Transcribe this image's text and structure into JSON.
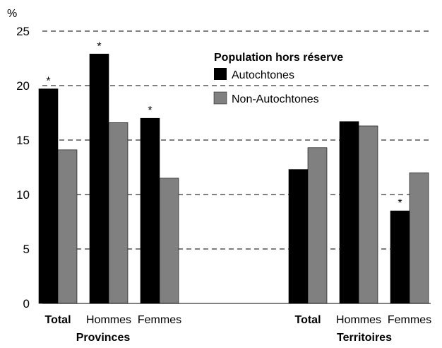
{
  "chart_data": {
    "type": "bar",
    "ylabel": "%",
    "ylim": [
      0,
      25
    ],
    "yticks": [
      0,
      5,
      10,
      15,
      20,
      25
    ],
    "grid": true,
    "legend_title": "Population hors réserve",
    "legend_position": "top-right",
    "groups": [
      {
        "name": "Provinces",
        "categories": [
          {
            "label": "Total",
            "bold": true,
            "values": [
              19.7,
              14.1
            ],
            "star": [
              true,
              false
            ]
          },
          {
            "label": "Hommes",
            "bold": false,
            "values": [
              22.9,
              16.6
            ],
            "star": [
              true,
              false
            ]
          },
          {
            "label": "Femmes",
            "bold": false,
            "values": [
              17.0,
              11.5
            ],
            "star": [
              true,
              false
            ]
          }
        ]
      },
      {
        "name": "Territoires",
        "categories": [
          {
            "label": "Total",
            "bold": true,
            "values": [
              12.3,
              14.3
            ],
            "star": [
              false,
              false
            ]
          },
          {
            "label": "Hommes",
            "bold": false,
            "values": [
              16.7,
              16.3
            ],
            "star": [
              false,
              false
            ]
          },
          {
            "label": "Femmes",
            "bold": false,
            "values": [
              8.5,
              12.0
            ],
            "star": [
              true,
              false
            ]
          }
        ]
      }
    ],
    "series": [
      {
        "name": "Autochtones",
        "color": "#000000"
      },
      {
        "name": "Non-Autochtones",
        "color": "#808080"
      }
    ],
    "significance_marker": "*"
  }
}
